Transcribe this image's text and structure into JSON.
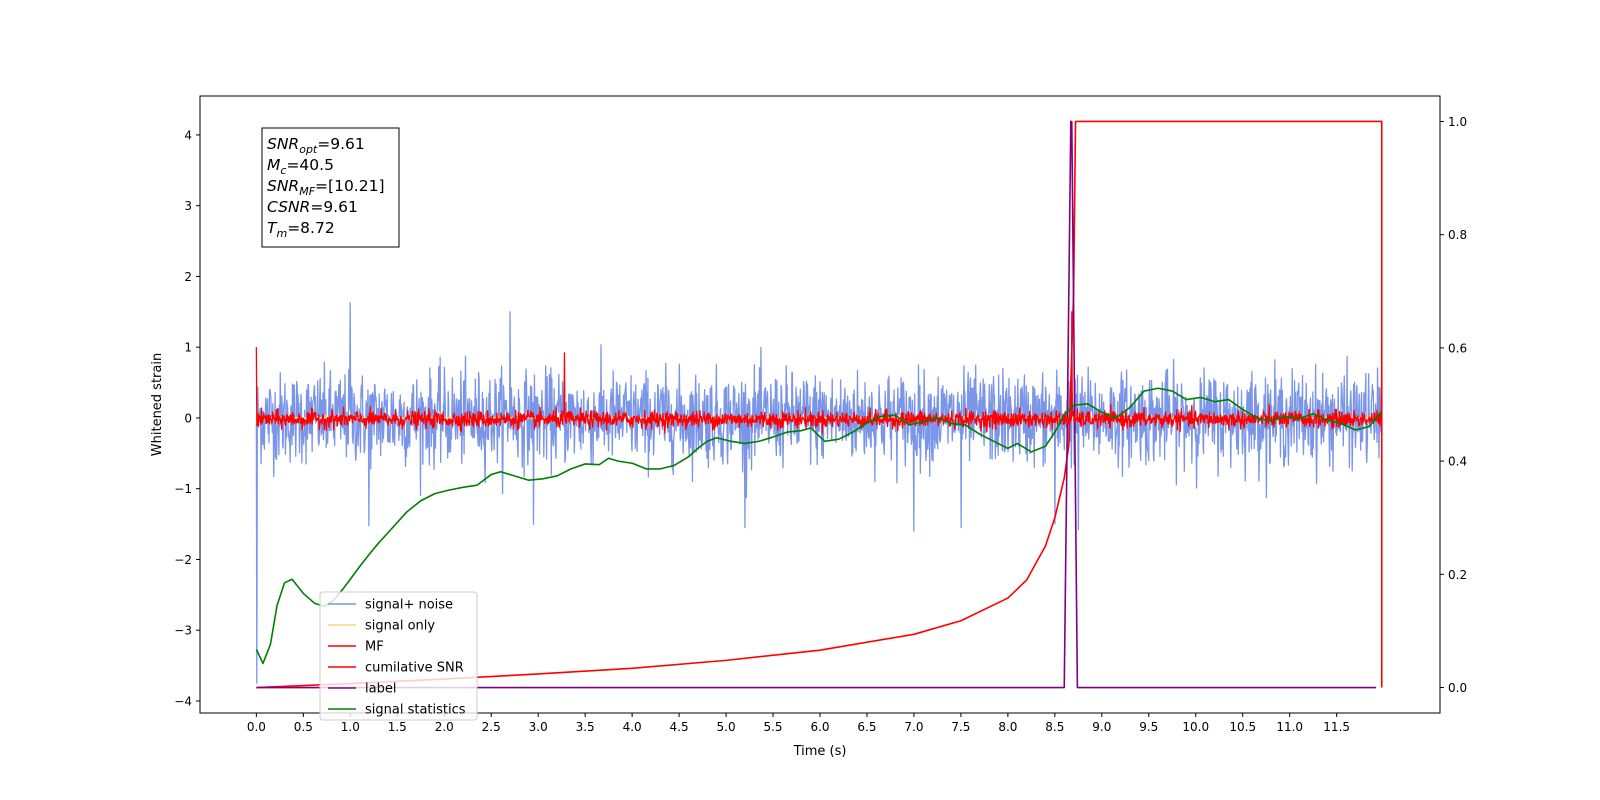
{
  "chart_data": {
    "type": "line",
    "xlabel": "Time (s)",
    "ylabel": "Whitened strain",
    "y2label": "",
    "xlim": [
      -0.6,
      12.6
    ],
    "ylim": [
      -4.17,
      4.55
    ],
    "y2lim": [
      -0.045,
      1.045
    ],
    "grid": false,
    "x_ticks": [
      0.0,
      0.5,
      1.0,
      1.5,
      2.0,
      2.5,
      3.0,
      3.5,
      4.0,
      4.5,
      5.0,
      5.5,
      6.0,
      6.5,
      7.0,
      7.5,
      8.0,
      8.5,
      9.0,
      9.5,
      10.0,
      10.5,
      11.0,
      11.5
    ],
    "x_tick_labels": [
      "0.0",
      "0.5",
      "1.0",
      "1.5",
      "2.0",
      "2.5",
      "3.0",
      "3.5",
      "4.0",
      "4.5",
      "5.0",
      "5.5",
      "6.0",
      "6.5",
      "7.0",
      "7.5",
      "8.0",
      "8.5",
      "9.0",
      "9.5",
      "10.0",
      "10.5",
      "11.0",
      "11.5"
    ],
    "y_ticks": [
      -4,
      -3,
      -2,
      -1,
      0,
      1,
      2,
      3,
      4
    ],
    "y_tick_labels": [
      "−4",
      "−3",
      "−2",
      "−1",
      "0",
      "1",
      "2",
      "3",
      "4"
    ],
    "y2_ticks": [
      0.0,
      0.2,
      0.4,
      0.6,
      0.8,
      1.0
    ],
    "y2_tick_labels": [
      "0.0",
      "0.2",
      "0.4",
      "0.6",
      "0.8",
      "1.0"
    ],
    "info_box": [
      {
        "sym": "SNR",
        "sub": "opt",
        "val": "=9.61"
      },
      {
        "sym": "M",
        "sub": "c",
        "val": "=40.5"
      },
      {
        "sym": "SNR",
        "sub": "MF",
        "val": "=[10.21]"
      },
      {
        "sym": "CSNR",
        "sub": "",
        "val": "=9.61"
      },
      {
        "sym": "T",
        "sub": "m",
        "val": "=8.72"
      }
    ],
    "legend_position": "lower-left",
    "series": [
      {
        "name": "signal+ noise",
        "color": "#7b96e8",
        "axis": "left",
        "noise": {
          "start": 0.0,
          "end": 11.98,
          "center": 0.0,
          "amplitude": 0.75,
          "spikes": [
            [
              1.0,
              1.63
            ],
            [
              2.7,
              1.5
            ],
            [
              2.95,
              -1.5
            ],
            [
              5.2,
              -1.55
            ],
            [
              7.0,
              -1.6
            ],
            [
              7.5,
              -1.55
            ],
            [
              8.5,
              -1.5
            ],
            [
              8.75,
              -1.58
            ],
            [
              1.2,
              -1.52
            ]
          ],
          "initial_drop": -3.75
        }
      },
      {
        "name": "signal only",
        "color": "#ffd27f",
        "axis": "left",
        "x": [
          0.0,
          11.98
        ],
        "y": [
          0.0,
          0.0
        ]
      },
      {
        "name": "MF",
        "color": "#ff0000",
        "axis": "left",
        "noise": {
          "start": 0.0,
          "end": 11.98,
          "center": -0.02,
          "amplitude": 0.14,
          "spikes": [
            [
              0.0,
              1.0
            ],
            [
              3.28,
              0.92
            ],
            [
              8.68,
              1.5
            ],
            [
              11.98,
              0.93
            ]
          ]
        }
      },
      {
        "name": "cumilative SNR",
        "color": "#ff0000",
        "axis": "right",
        "x": [
          0.0,
          1.0,
          2.0,
          3.0,
          4.0,
          5.0,
          6.0,
          7.0,
          7.5,
          8.0,
          8.2,
          8.4,
          8.5,
          8.6,
          8.65,
          8.7,
          8.72,
          11.98,
          11.98
        ],
        "y": [
          0.0,
          0.007,
          0.015,
          0.024,
          0.034,
          0.048,
          0.066,
          0.094,
          0.118,
          0.158,
          0.19,
          0.25,
          0.3,
          0.37,
          0.43,
          0.7,
          1.0,
          1.0,
          0.0
        ]
      },
      {
        "name": "label",
        "color": "#800080",
        "axis": "right",
        "x": [
          0.0,
          8.6,
          8.67,
          8.68,
          8.74,
          8.75,
          11.92
        ],
        "y": [
          0.0,
          0.0,
          1.0,
          1.0,
          0.0,
          0.0,
          0.0
        ]
      },
      {
        "name": "signal statistics",
        "color": "#008000",
        "axis": "left",
        "x": [
          0.0,
          0.07,
          0.15,
          0.22,
          0.3,
          0.38,
          0.5,
          0.62,
          0.72,
          0.82,
          0.92,
          1.0,
          1.1,
          1.2,
          1.3,
          1.45,
          1.6,
          1.75,
          1.9,
          2.05,
          2.2,
          2.35,
          2.5,
          2.6,
          2.75,
          2.9,
          3.05,
          3.2,
          3.35,
          3.5,
          3.65,
          3.75,
          3.85,
          4.0,
          4.15,
          4.3,
          4.45,
          4.6,
          4.7,
          4.8,
          4.9,
          5.05,
          5.2,
          5.35,
          5.5,
          5.65,
          5.8,
          5.9,
          6.05,
          6.2,
          6.35,
          6.5,
          6.65,
          6.8,
          6.95,
          7.1,
          7.25,
          7.4,
          7.55,
          7.7,
          7.85,
          8.0,
          8.1,
          8.25,
          8.4,
          8.5,
          8.6,
          8.7,
          8.85,
          9.0,
          9.15,
          9.3,
          9.45,
          9.6,
          9.75,
          9.9,
          10.05,
          10.2,
          10.35,
          10.5,
          10.65,
          10.8,
          10.95,
          11.1,
          11.25,
          11.4,
          11.55,
          11.7,
          11.85,
          11.98
        ],
        "y": [
          -3.27,
          -3.47,
          -3.2,
          -2.65,
          -2.33,
          -2.28,
          -2.48,
          -2.62,
          -2.66,
          -2.58,
          -2.42,
          -2.28,
          -2.1,
          -1.93,
          -1.77,
          -1.55,
          -1.33,
          -1.17,
          -1.07,
          -1.02,
          -0.98,
          -0.95,
          -0.8,
          -0.76,
          -0.82,
          -0.88,
          -0.86,
          -0.82,
          -0.72,
          -0.65,
          -0.66,
          -0.57,
          -0.61,
          -0.64,
          -0.72,
          -0.72,
          -0.67,
          -0.55,
          -0.43,
          -0.33,
          -0.28,
          -0.33,
          -0.36,
          -0.33,
          -0.27,
          -0.2,
          -0.18,
          -0.14,
          -0.33,
          -0.3,
          -0.2,
          -0.07,
          0.02,
          0.04,
          -0.1,
          -0.05,
          0.0,
          -0.08,
          -0.1,
          -0.23,
          -0.33,
          -0.43,
          -0.36,
          -0.48,
          -0.4,
          -0.2,
          0.05,
          0.18,
          0.2,
          0.08,
          0.0,
          0.15,
          0.38,
          0.42,
          0.38,
          0.26,
          0.29,
          0.23,
          0.26,
          0.12,
          0.0,
          -0.04,
          0.02,
          -0.01,
          0.06,
          -0.03,
          -0.08,
          -0.17,
          -0.12,
          0.1
        ]
      }
    ]
  }
}
